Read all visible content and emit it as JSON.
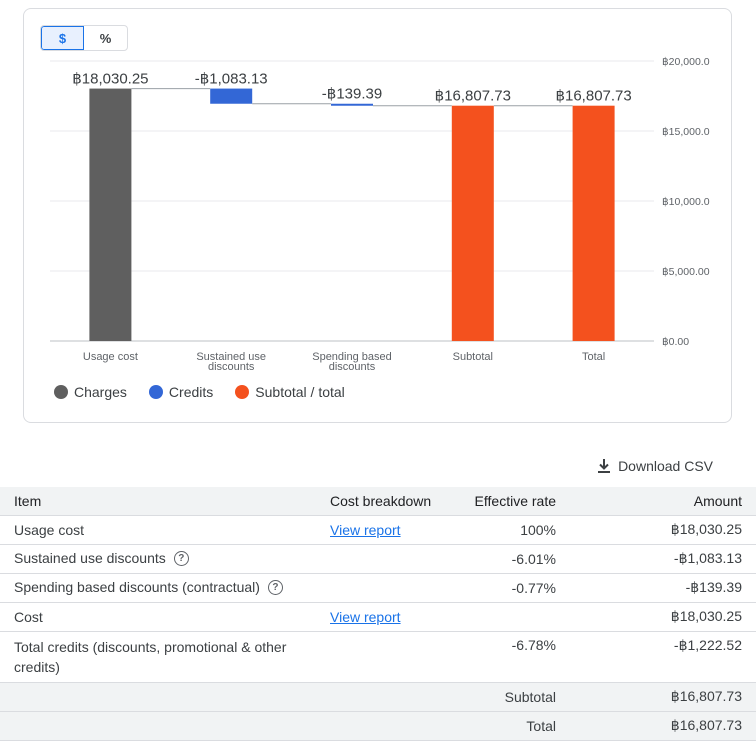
{
  "toggle": {
    "dollar": "$",
    "percent": "%"
  },
  "chart_data": {
    "type": "waterfall",
    "categories": [
      "Usage cost",
      "Sustained use discounts",
      "Spending based discounts",
      "Subtotal",
      "Total"
    ],
    "values": [
      18030.25,
      -1083.13,
      -139.39,
      16807.73,
      16807.73
    ],
    "value_labels": [
      "฿18,030.25",
      "-฿1,083.13",
      "-฿139.39",
      "฿16,807.73",
      "฿16,807.73"
    ],
    "kinds": [
      "charge",
      "credit",
      "credit",
      "total",
      "total"
    ],
    "ylim": [
      0,
      20000
    ],
    "yticks": [
      0,
      5000,
      10000,
      15000,
      20000
    ],
    "ytick_labels": [
      "฿0.00",
      "฿5,000.00",
      "฿10,000.0",
      "฿15,000.0",
      "฿20,000.0"
    ],
    "legend": [
      "Charges",
      "Credits",
      "Subtotal / total"
    ],
    "colors": {
      "charge": "#5f5f5f",
      "credit": "#3367d6",
      "total": "#f4511e"
    }
  },
  "download_label": "Download CSV",
  "table": {
    "headers": {
      "item": "Item",
      "breakdown": "Cost breakdown",
      "rate": "Effective rate",
      "amount": "Amount"
    },
    "rows": [
      {
        "item": "Usage cost",
        "link": "View report",
        "rate": "100%",
        "amount": "฿18,030.25"
      },
      {
        "item": "Sustained use discounts",
        "rate": "-6.01%",
        "amount": "-฿1,083.13"
      },
      {
        "item": "Spending based discounts (contractual)",
        "rate": "-0.77%",
        "amount": "-฿139.39"
      },
      {
        "item": "Cost",
        "link": "View report",
        "amount": "฿18,030.25"
      },
      {
        "item": "Total credits (discounts, promotional & other credits)",
        "rate": "-6.78%",
        "amount": "-฿1,222.52"
      }
    ],
    "subtotal": {
      "label": "Subtotal",
      "amount": "฿16,807.73"
    },
    "total": {
      "label": "Total",
      "amount": "฿16,807.73"
    }
  }
}
